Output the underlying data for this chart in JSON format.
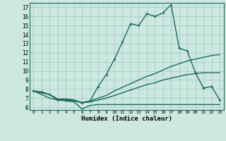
{
  "xlabel": "Humidex (Indice chaleur)",
  "background_color": "#cce8e0",
  "grid_color": "#a0c8bf",
  "line_color": "#1a6b5a",
  "xlim": [
    -0.5,
    23.5
  ],
  "ylim": [
    5.7,
    17.5
  ],
  "xticks": [
    0,
    1,
    2,
    3,
    4,
    5,
    6,
    7,
    8,
    9,
    10,
    11,
    12,
    13,
    14,
    15,
    16,
    17,
    18,
    19,
    20,
    21,
    22,
    23
  ],
  "yticks": [
    6,
    7,
    8,
    9,
    10,
    11,
    12,
    13,
    14,
    15,
    16,
    17
  ],
  "series": [
    {
      "x": [
        0,
        1,
        2,
        3,
        4,
        5,
        6,
        7,
        8,
        9,
        10,
        11,
        12,
        13,
        14,
        15,
        16,
        17,
        18,
        19,
        20,
        21,
        22,
        23
      ],
      "y": [
        7.8,
        7.7,
        7.4,
        6.8,
        6.8,
        6.7,
        6.5,
        6.7,
        8.3,
        9.6,
        11.3,
        13.2,
        15.2,
        15.0,
        16.3,
        16.0,
        16.4,
        17.3,
        12.5,
        12.2,
        9.8,
        8.1,
        8.3,
        6.8
      ],
      "marker": "+",
      "linewidth": 1.0,
      "markersize": 3.5
    },
    {
      "x": [
        0,
        1,
        2,
        3,
        4,
        5,
        6,
        7,
        8,
        9,
        10,
        11,
        12,
        13,
        14,
        15,
        16,
        17,
        18,
        19,
        20,
        21,
        22,
        23
      ],
      "y": [
        7.8,
        7.6,
        7.4,
        6.9,
        6.9,
        6.8,
        6.5,
        6.7,
        7.0,
        7.3,
        7.8,
        8.2,
        8.6,
        9.0,
        9.4,
        9.7,
        10.1,
        10.5,
        10.8,
        11.1,
        11.3,
        11.5,
        11.7,
        11.8
      ],
      "marker": null,
      "linewidth": 1.0,
      "markersize": 0
    },
    {
      "x": [
        0,
        1,
        2,
        3,
        4,
        5,
        6,
        7,
        8,
        9,
        10,
        11,
        12,
        13,
        14,
        15,
        16,
        17,
        18,
        19,
        20,
        21,
        22,
        23
      ],
      "y": [
        7.8,
        7.6,
        7.4,
        6.9,
        6.9,
        6.8,
        6.5,
        6.6,
        6.8,
        7.0,
        7.3,
        7.6,
        7.9,
        8.2,
        8.5,
        8.7,
        9.0,
        9.2,
        9.4,
        9.6,
        9.7,
        9.8,
        9.8,
        9.8
      ],
      "marker": null,
      "linewidth": 1.0,
      "markersize": 0
    },
    {
      "x": [
        0,
        1,
        2,
        3,
        4,
        5,
        6,
        7,
        8,
        9,
        10,
        11,
        12,
        13,
        14,
        15,
        16,
        17,
        18,
        19,
        20,
        21,
        22,
        23
      ],
      "y": [
        7.8,
        7.4,
        7.0,
        6.8,
        6.7,
        6.6,
        5.8,
        6.2,
        6.3,
        6.3,
        6.3,
        6.3,
        6.3,
        6.3,
        6.3,
        6.3,
        6.3,
        6.3,
        6.3,
        6.3,
        6.3,
        6.3,
        6.3,
        6.3
      ],
      "marker": null,
      "linewidth": 1.0,
      "markersize": 0
    }
  ]
}
